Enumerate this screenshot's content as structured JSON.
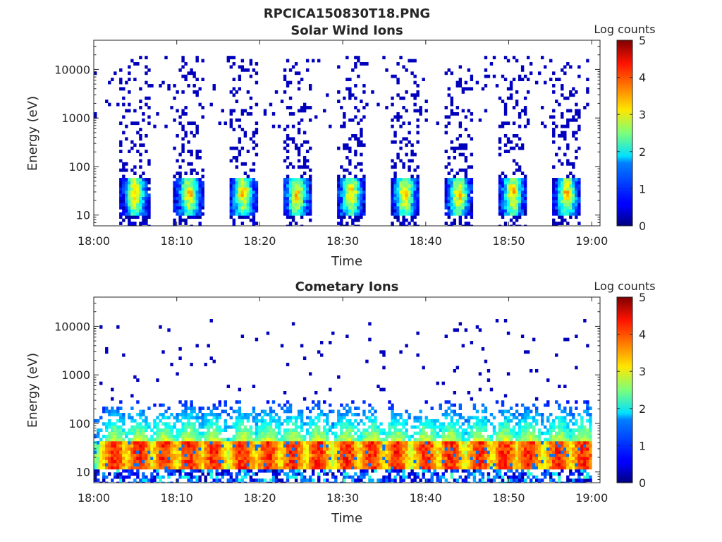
{
  "figure": {
    "title": "RPCICA150830T18.PNG"
  },
  "chart_data": [
    {
      "type": "heatmap",
      "title": "Solar Wind Ions",
      "xlabel": "Time",
      "ylabel": "Energy (eV)",
      "x_ticks": [
        "18:00",
        "18:10",
        "18:20",
        "18:30",
        "18:40",
        "18:50",
        "19:00"
      ],
      "x_range": [
        "18:00",
        "19:00"
      ],
      "y_scale": "log",
      "y_ticks": [
        10,
        100,
        1000,
        10000
      ],
      "y_tick_labels": [
        "10",
        "100",
        "1000",
        "10000"
      ],
      "ylim": [
        6,
        40000
      ],
      "colorbar": {
        "label": "Log counts",
        "range": [
          0,
          5
        ],
        "ticks": [
          "0",
          "1",
          "2",
          "3",
          "4",
          "5"
        ],
        "colormap": "jet"
      },
      "data": {
        "pattern": "periodic bursts",
        "burst_centers_min": [
          5,
          11.5,
          18,
          24.5,
          31,
          37.5,
          44,
          50.5,
          57
        ],
        "burst_width_min": 3,
        "core_energy_range_eV": [
          10,
          60
        ],
        "core_peak_log_counts": 3.2,
        "sparse_energy_range_eV": [
          60,
          20000
        ],
        "sparse_log_counts": 0.3
      }
    },
    {
      "type": "heatmap",
      "title": "Cometary Ions",
      "xlabel": "Time",
      "ylabel": "Energy (eV)",
      "x_ticks": [
        "18:00",
        "18:10",
        "18:20",
        "18:30",
        "18:40",
        "18:50",
        "19:00"
      ],
      "x_range": [
        "18:00",
        "19:00"
      ],
      "y_scale": "log",
      "y_ticks": [
        10,
        100,
        1000,
        10000
      ],
      "y_tick_labels": [
        "10",
        "100",
        "1000",
        "10000"
      ],
      "ylim": [
        6,
        40000
      ],
      "colorbar": {
        "label": "Log counts",
        "range": [
          0,
          5
        ],
        "ticks": [
          "0",
          "1",
          "2",
          "3",
          "4",
          "5"
        ],
        "colormap": "jet"
      },
      "data": {
        "pattern": "near-continuous band with periodic peaks",
        "burst_centers_min": [
          2.5,
          5.5,
          8.5,
          11.5,
          14.5,
          18,
          21,
          24,
          27,
          30.5,
          33.5,
          36.5,
          40,
          43,
          46.5,
          49.5,
          52.5,
          56,
          59
        ],
        "core_energy_range_eV": [
          12,
          45
        ],
        "core_peak_log_counts": 4.2,
        "plume_energy_range_eV": [
          45,
          300
        ],
        "sparse_energy_range_eV": [
          300,
          15000
        ],
        "sparse_log_counts": 0.3
      }
    }
  ]
}
